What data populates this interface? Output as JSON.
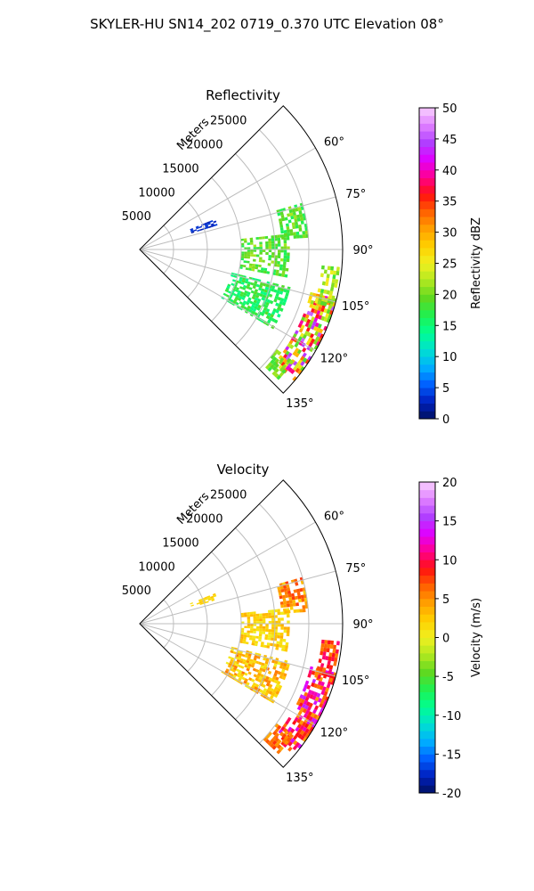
{
  "figure": {
    "suptitle": "SKYLER-HU  SN14_202  0719_0.370 UTC Elevation 08°"
  },
  "chart_data": [
    {
      "type": "heatmap",
      "projection": "polar-sector",
      "title": "Reflectivity",
      "theta_range_deg": [
        45,
        135
      ],
      "theta_ticks": [
        "60°",
        "75°",
        "90°",
        "105°",
        "120°",
        "135°"
      ],
      "theta_tick_values": [
        60,
        75,
        90,
        105,
        120,
        135
      ],
      "r_label": "Meters",
      "r_max": 30000,
      "r_ticks": [
        "5000",
        "10000",
        "15000",
        "20000",
        "25000"
      ],
      "r_tick_values": [
        5000,
        10000,
        15000,
        20000,
        25000
      ],
      "grid": true,
      "colorbar": {
        "label": "Reflectivity dBZ",
        "min": 0,
        "max": 50,
        "ticks": [
          "0",
          "5",
          "10",
          "15",
          "20",
          "25",
          "30",
          "35",
          "40",
          "45",
          "50"
        ],
        "tick_values": [
          0,
          5,
          10,
          15,
          20,
          25,
          30,
          35,
          40,
          45,
          50
        ],
        "stops": [
          "#001060",
          "#0020c0",
          "#0060ff",
          "#00b0ff",
          "#00e0d0",
          "#00ff90",
          "#20f050",
          "#60d820",
          "#b0e820",
          "#f0f020",
          "#ffd000",
          "#ffa000",
          "#ff6000",
          "#ff1010",
          "#ff0090",
          "#e000ff",
          "#b040ff",
          "#e080ff",
          "#f8d0ff"
        ]
      },
      "echo_regions": [
        {
          "r": [
            26000,
            29700
          ],
          "theta": [
            104,
            130
          ],
          "value_range": [
            18,
            46
          ]
        },
        {
          "r": [
            27000,
            29700
          ],
          "theta": [
            95,
            106
          ],
          "value_range": [
            17,
            26
          ]
        },
        {
          "r": [
            14000,
            23000
          ],
          "theta": [
            104,
            120
          ],
          "value_range": [
            14,
            19
          ]
        },
        {
          "r": [
            15000,
            22000
          ],
          "theta": [
            84,
            100
          ],
          "value_range": [
            16,
            22
          ]
        },
        {
          "r": [
            21000,
            25000
          ],
          "theta": [
            74,
            86
          ],
          "value_range": [
            16,
            22
          ]
        },
        {
          "r": [
            8000,
            12000
          ],
          "theta": [
            68,
            72
          ],
          "value_range": [
            2,
            4
          ]
        },
        {
          "r": [
            25000,
            28000
          ],
          "theta": [
            126,
            132
          ],
          "value_range": [
            17,
            22
          ]
        }
      ]
    },
    {
      "type": "heatmap",
      "projection": "polar-sector",
      "title": "Velocity",
      "theta_range_deg": [
        45,
        135
      ],
      "theta_ticks": [
        "60°",
        "75°",
        "90°",
        "105°",
        "120°",
        "135°"
      ],
      "theta_tick_values": [
        60,
        75,
        90,
        105,
        120,
        135
      ],
      "r_label": "Meters",
      "r_max": 30000,
      "r_ticks": [
        "5000",
        "10000",
        "15000",
        "20000",
        "25000"
      ],
      "r_tick_values": [
        5000,
        10000,
        15000,
        20000,
        25000
      ],
      "grid": true,
      "colorbar": {
        "label": "Velocity (m/s)",
        "min": -20,
        "max": 20,
        "ticks": [
          "-20",
          "-15",
          "-10",
          "-5",
          "0",
          "5",
          "10",
          "15",
          "20"
        ],
        "tick_values": [
          -20,
          -15,
          -10,
          -5,
          0,
          5,
          10,
          15,
          20
        ],
        "stops": [
          "#001060",
          "#0020c0",
          "#0060ff",
          "#00b0ff",
          "#00e0d0",
          "#00ff90",
          "#20f050",
          "#60d820",
          "#b0e820",
          "#f0f020",
          "#ffd000",
          "#ffa000",
          "#ff6000",
          "#ff1010",
          "#ff0090",
          "#e000ff",
          "#b040ff",
          "#e080ff",
          "#f8d0ff"
        ]
      },
      "echo_regions": [
        {
          "r": [
            26000,
            29700
          ],
          "theta": [
            104,
            130
          ],
          "value_range": [
            4,
            15
          ]
        },
        {
          "r": [
            27000,
            29700
          ],
          "theta": [
            95,
            106
          ],
          "value_range": [
            5,
            11
          ]
        },
        {
          "r": [
            14000,
            23000
          ],
          "theta": [
            104,
            120
          ],
          "value_range": [
            0,
            6
          ]
        },
        {
          "r": [
            15000,
            22000
          ],
          "theta": [
            84,
            100
          ],
          "value_range": [
            0,
            4
          ]
        },
        {
          "r": [
            21000,
            25000
          ],
          "theta": [
            74,
            86
          ],
          "value_range": [
            2,
            8
          ]
        },
        {
          "r": [
            8000,
            12000
          ],
          "theta": [
            68,
            72
          ],
          "value_range": [
            1,
            3
          ]
        },
        {
          "r": [
            25000,
            28000
          ],
          "theta": [
            126,
            132
          ],
          "value_range": [
            4,
            8
          ]
        }
      ]
    }
  ]
}
